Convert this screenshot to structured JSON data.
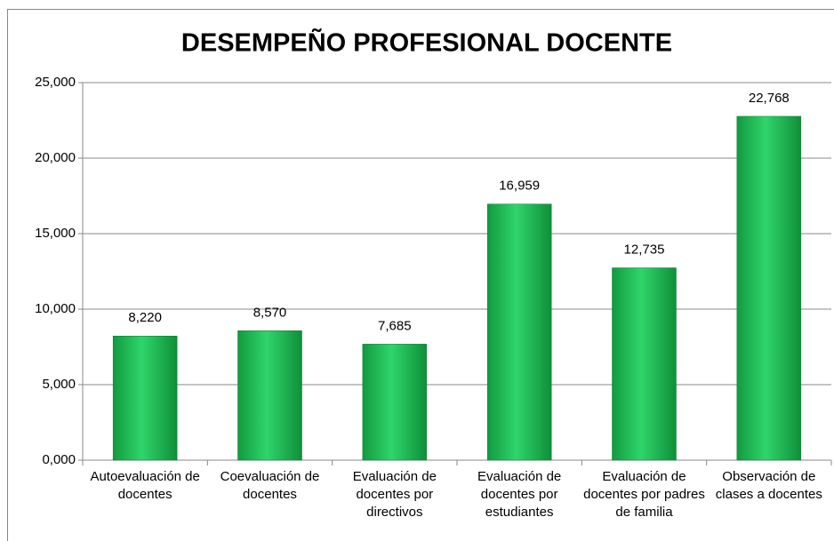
{
  "chart_data": {
    "type": "bar",
    "title": "DESEMPEÑO PROFESIONAL DOCENTE",
    "categories": [
      "Autoevaluación de docentes",
      "Coevaluación de docentes",
      "Evaluación de docentes por directivos",
      "Evaluación de docentes por estudiantes",
      "Evaluación de docentes por padres de familia",
      "Observación de clases a docentes"
    ],
    "values": [
      8.22,
      8.57,
      7.685,
      16.959,
      12.735,
      22.768
    ],
    "value_labels": [
      "8,220",
      "8,570",
      "7,685",
      "16,959",
      "12,735",
      "22,768"
    ],
    "color": "#22bb55",
    "ylim": [
      0,
      25
    ],
    "yticks": [
      {
        "value": 0,
        "label": "0,000"
      },
      {
        "value": 5,
        "label": "5,000"
      },
      {
        "value": 10,
        "label": "10,000"
      },
      {
        "value": 15,
        "label": "15,000"
      },
      {
        "value": 20,
        "label": "20,000"
      },
      {
        "value": 25,
        "label": "25,000"
      }
    ],
    "grid": true
  }
}
